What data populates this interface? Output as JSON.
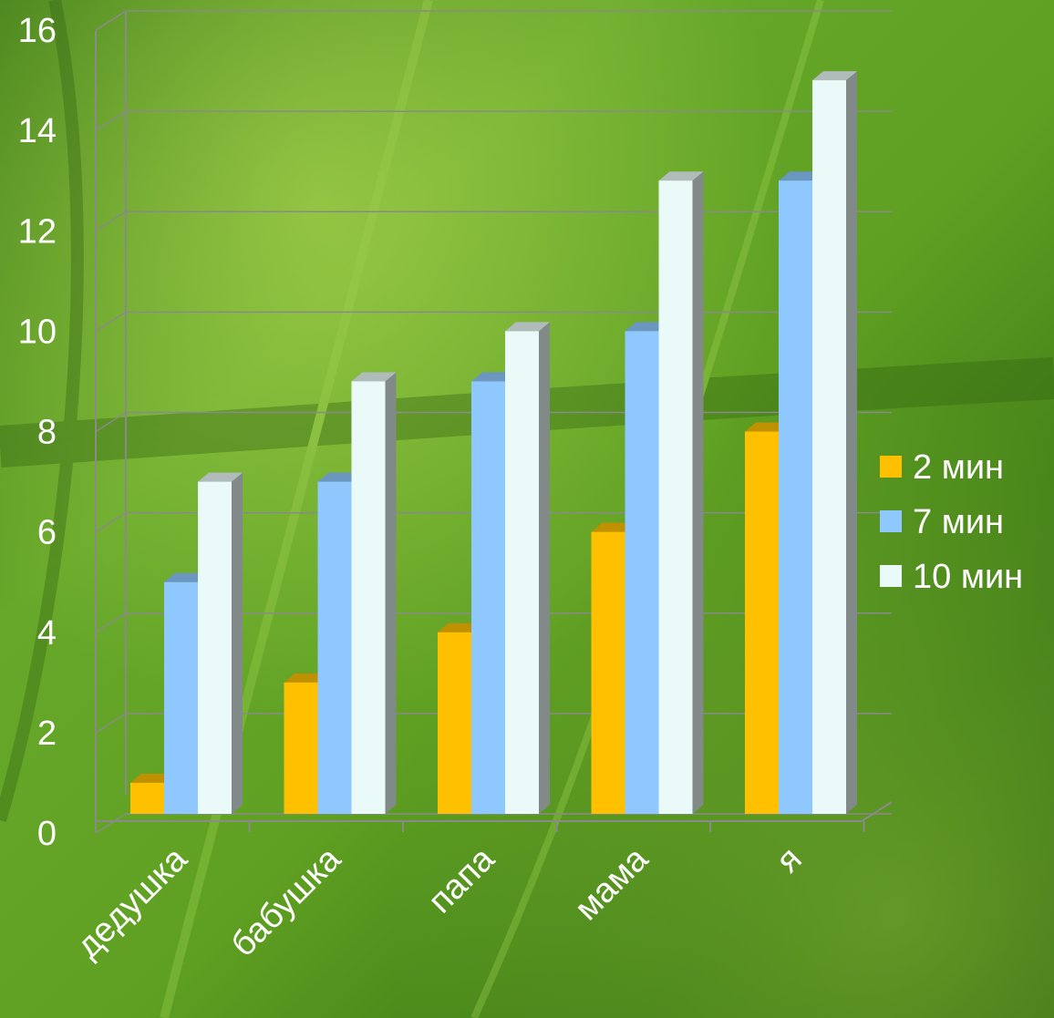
{
  "chart_data": {
    "type": "bar",
    "categories": [
      "дедушка",
      "бабушка",
      "папа",
      "мама",
      "я"
    ],
    "series": [
      {
        "name": "2 мин",
        "values": [
          1,
          3,
          4,
          6,
          8
        ],
        "color": "#ffc000"
      },
      {
        "name": "7 мин",
        "values": [
          5,
          7,
          9,
          10,
          13
        ],
        "color": "#8ec8ff"
      },
      {
        "name": "10 мин",
        "values": [
          7,
          9,
          10,
          13,
          15
        ],
        "color": "#eafaf8"
      }
    ],
    "ylim": [
      0,
      16
    ],
    "yticks": [
      "0",
      "2",
      "4",
      "6",
      "8",
      "10",
      "12",
      "14",
      "16"
    ],
    "grid": true,
    "legend": "right",
    "style": "3d-clustered-column",
    "background": "green-leaf"
  }
}
